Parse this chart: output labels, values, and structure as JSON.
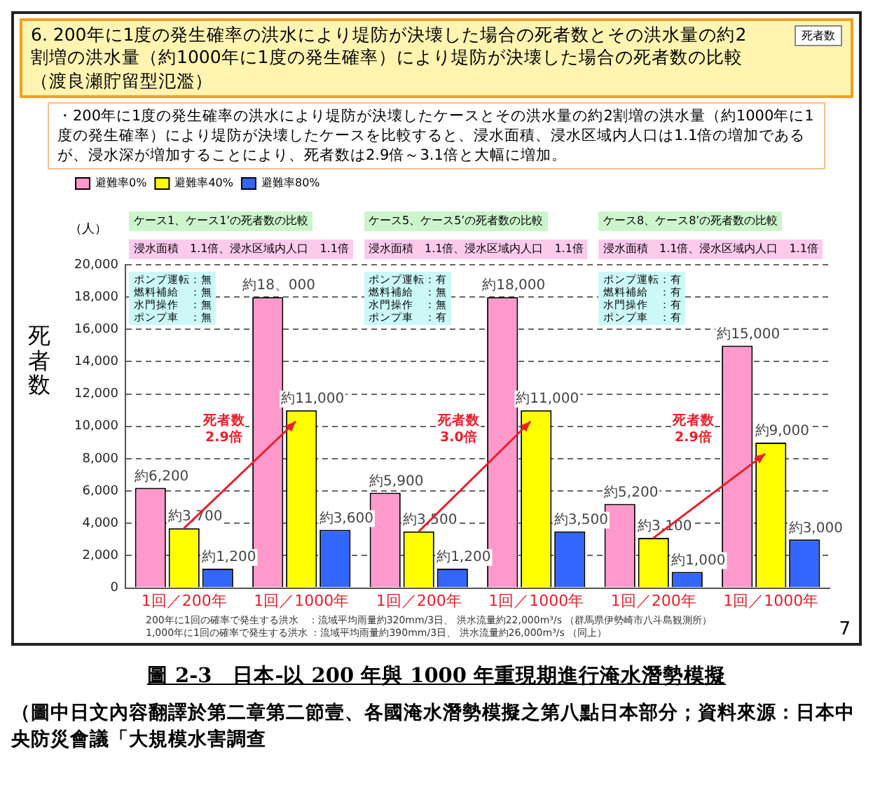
{
  "chart_data": {
    "type": "bar",
    "title": "6. 200年に1度の発生確率の洪水により堤防が決壊した場合の死者数とその洪水量の約2割増の洪水量（約1000年に1度の発生確率）により堤防が決壊した場合の死者数の比較（渡良瀬貯留型氾濫）",
    "ylabel": "死者数",
    "categories": [
      "1回／200年",
      "1回／1000年",
      "1回／200年",
      "1回／1000年",
      "1回／200年",
      "1回／1000年"
    ],
    "series": [
      {
        "name": "避難率0%",
        "color": "#ff99cc",
        "values": [
          6200,
          18000,
          5900,
          18000,
          5200,
          15000
        ],
        "value_labels": [
          "約6,200",
          "約18、000",
          "約5,900",
          "約18,000",
          "約5,200",
          "約15,000"
        ]
      },
      {
        "name": "避難率40%",
        "color": "#ffff00",
        "values": [
          3700,
          11000,
          3500,
          11000,
          3100,
          9000
        ],
        "value_labels": [
          "約3,700",
          "約11,000",
          "約3,500",
          "約11,000",
          "約3,100",
          "約9,000"
        ]
      },
      {
        "name": "避難率80%",
        "color": "#3366ff",
        "values": [
          1200,
          3600,
          1200,
          3500,
          1000,
          3000
        ],
        "value_labels": [
          "約1,200",
          "約3,600",
          "約1,200",
          "約3,500",
          "約1,000",
          "約3,000"
        ]
      }
    ],
    "ylim": [
      0,
      20000
    ],
    "yticks": [
      {
        "value": 0,
        "label": "0"
      },
      {
        "value": 2000,
        "label": "2,000"
      },
      {
        "value": 4000,
        "label": "4,000"
      },
      {
        "value": 6000,
        "label": "6,000"
      },
      {
        "value": 8000,
        "label": "8,000"
      },
      {
        "value": 10000,
        "label": "10,000"
      },
      {
        "value": 12000,
        "label": "12,000"
      },
      {
        "value": 14000,
        "label": "14,000"
      },
      {
        "value": 16000,
        "label": "16,000"
      },
      {
        "value": 18000,
        "label": "18,000"
      },
      {
        "value": 20000,
        "label": "20,000"
      }
    ],
    "grid": "y",
    "legend": "top left",
    "annotations": [
      "死者数",
      "・200年に1度の発生確率の洪水により堤防が決壊したケースとその洪水量の約2割増の洪水量（約1000年に1度の発生確率）により堤防が決壊したケースを比較すると、浸水面積、浸水区域内人口は1.1倍の増加であるが、浸水深が増加することにより、死者数は2.9倍～3.1倍と大幅に増加。",
      "（人）",
      "ケース1、ケース1’の死者数の比較",
      "ケース5、ケース5’の死者数の比較",
      "ケース8、ケース8’の死者数の比較",
      "浸水面積　1.1倍、浸水区域内人口　1.1倍",
      "浸水面積　1.1倍、浸水区域内人口　1.1倍",
      "浸水面積　1.1倍、浸水区域内人口　1.1倍",
      "ポンプ運転：無",
      "燃料補給　：無",
      "水門操作　：無",
      "ポンプ車　：無",
      "ポンプ運転：有",
      "燃料補給　：無",
      "水門操作　：無",
      "ポンプ車　：有",
      "ポンプ運転：有",
      "燃料補給　：有",
      "水門操作　：有",
      "ポンプ車　：有",
      "死者数2.9倍",
      "死者数3.0倍",
      "死者数2.9倍",
      "200年に1回の確率で発生する洪水　：流域平均雨量約320mm/3日、 洪水流量約22,000m³/s （群馬県伊勢崎市八斗島観測所）",
      "1,000年に1回の確率で発生する洪水 ：流域平均雨量約390mm/3日、 洪水流量約26,000m³/s （同上）",
      "7",
      "圖 2-3　日本-以 200 年與 1000 年重現期進行淹水潛勢模擬",
      "（圖中日文內容翻譯於第二章第二節壹、各國淹水潛勢模擬之第八點日本部分；資料來源：日本中央防災會議「大規模水害調查"
    ]
  }
}
